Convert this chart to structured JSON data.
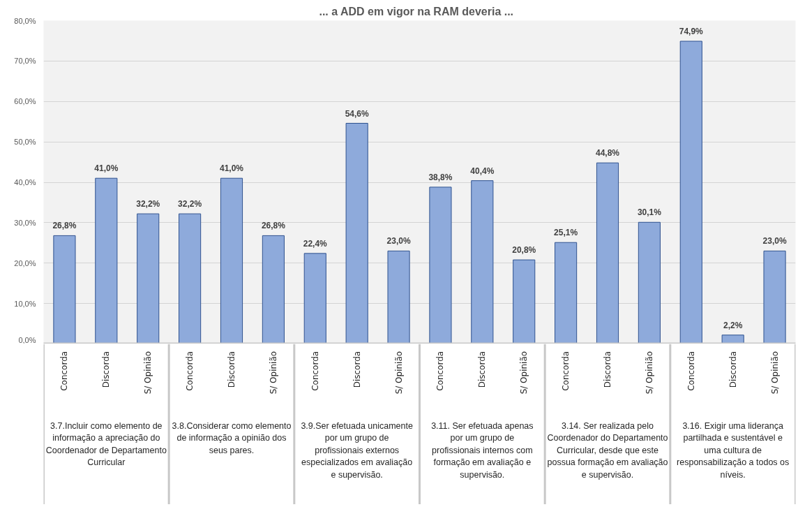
{
  "chart_data": {
    "type": "bar",
    "title": "... a  ADD  em vigor na RAM deveria ...",
    "categories": [
      "Concorda",
      "Discorda",
      "S/ Opinião",
      "Concorda",
      "Discorda",
      "S/ Opinião",
      "Concorda",
      "Discorda",
      "S/ Opinião",
      "Concorda",
      "Discorda",
      "S/ Opinião",
      "Concorda",
      "Discorda",
      "S/ Opinião",
      "Concorda",
      "Discorda",
      "S/ Opinião"
    ],
    "values": [
      26.8,
      41.0,
      32.2,
      32.2,
      41.0,
      26.8,
      22.4,
      54.6,
      23.0,
      38.8,
      40.4,
      20.8,
      25.1,
      44.8,
      30.1,
      74.9,
      2.2,
      23.0
    ],
    "value_labels": [
      "26,8%",
      "41,0%",
      "32,2%",
      "32,2%",
      "41,0%",
      "26,8%",
      "22,4%",
      "54,6%",
      "23,0%",
      "38,8%",
      "40,4%",
      "20,8%",
      "25,1%",
      "44,8%",
      "30,1%",
      "74,9%",
      "2,2%",
      "23,0%"
    ],
    "color": "#8eaadb",
    "ylim": [
      0,
      80
    ],
    "yticks": [
      {
        "value": 0,
        "label": "0,0%"
      },
      {
        "value": 10,
        "label": "10,0%"
      },
      {
        "value": 20,
        "label": "20,0%"
      },
      {
        "value": 30,
        "label": "30,0%"
      },
      {
        "value": 40,
        "label": "40,0%"
      },
      {
        "value": 50,
        "label": "50,0%"
      },
      {
        "value": 60,
        "label": "60,0%"
      },
      {
        "value": 70,
        "label": "70,0%"
      },
      {
        "value": 80,
        "label": "80,0%"
      }
    ],
    "grid": "y",
    "annotations": [
      "3.7.Incluir como elemento de informação a apreciação do Coordenador de Departamento Curricular",
      "3.8.Considerar como elemento de informação a opinião dos seus pares.",
      "3.9.Ser efetuada unicamente por um grupo de profissionais externos especializados em avaliação e supervisão.",
      "3.11. Ser efetuada apenas por um grupo de profissionais internos com formação em avaliação e supervisão.",
      "3.14. Ser realizada pelo Coordenador do Departamento Curricular, desde que este possua formação em avaliação e supervisão.",
      "3.16. Exigir uma liderança partilhada e sustentável e uma cultura de responsabilização a todos os níveis."
    ]
  }
}
